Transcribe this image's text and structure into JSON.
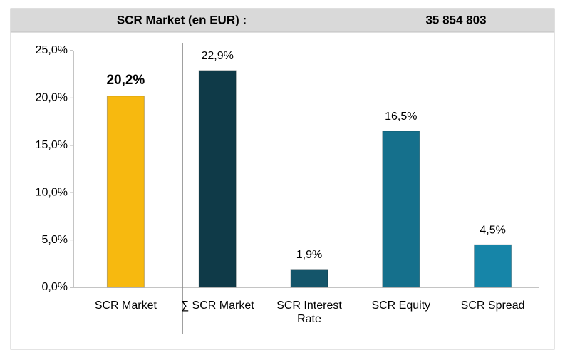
{
  "chart_data": {
    "type": "bar",
    "title": "SCR Market (en EUR) :",
    "subtitle": "35 854 803",
    "categories": [
      "SCR Market",
      "∑ SCR Market",
      "SCR Interest Rate",
      "SCR Equity",
      "SCR Spread"
    ],
    "values": [
      20.2,
      22.9,
      1.9,
      16.5,
      4.5
    ],
    "value_labels": [
      "20,2%",
      "22,9%",
      "1,9%",
      "16,5%",
      "4,5%"
    ],
    "colors": [
      "#f7b90f",
      "#0f3a48",
      "#14556a",
      "#15708c",
      "#1685a8"
    ],
    "ylim": [
      0,
      25
    ],
    "yticks": [
      {
        "value": 0,
        "label": "0,0%"
      },
      {
        "value": 5,
        "label": "5,0%"
      },
      {
        "value": 10,
        "label": "10,0%"
      },
      {
        "value": 15,
        "label": "15,0%"
      },
      {
        "value": 20,
        "label": "20,0%"
      },
      {
        "value": 25,
        "label": "25,0%"
      }
    ],
    "grid": false
  }
}
